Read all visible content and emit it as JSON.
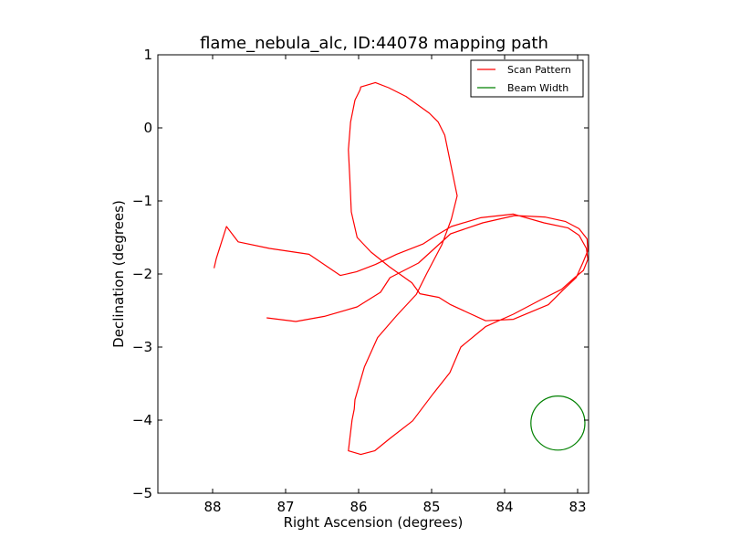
{
  "chart_data": {
    "type": "line",
    "title": "flame_nebula_alc, ID:44078 mapping path",
    "xlabel": "Right Ascension (degrees)",
    "ylabel": "Declination (degrees)",
    "xlim": [
      88.75,
      82.85
    ],
    "ylim": [
      -5,
      1
    ],
    "x_ticks": [
      88,
      87,
      86,
      85,
      84,
      83
    ],
    "y_ticks": [
      1,
      0,
      -1,
      -2,
      -3,
      -4,
      -5
    ],
    "x_tick_labels": [
      "88",
      "87",
      "86",
      "85",
      "84",
      "83"
    ],
    "y_tick_labels": [
      "1",
      "0",
      "−1",
      "−2",
      "−3",
      "−4",
      "−5"
    ],
    "grid": false,
    "legend": {
      "placement": "top-right",
      "entries": [
        {
          "label": "Scan Pattern",
          "color": "#ff0000"
        },
        {
          "label": "Beam Width",
          "color": "#008000"
        }
      ]
    },
    "series": [
      {
        "name": "Scan Pattern",
        "color": "#ff0000",
        "x": [
          87.26,
          86.86,
          86.47,
          86.02,
          85.7,
          85.57,
          85.18,
          84.74,
          84.3,
          83.86,
          83.45,
          83.17,
          82.98,
          82.87,
          82.86,
          82.93,
          83.02,
          83.2,
          83.4,
          83.88,
          84.26,
          84.74,
          84.9,
          85.16,
          85.27,
          85.58,
          85.83,
          86.02,
          86.1,
          86.12,
          86.14,
          86.11,
          86.05,
          85.98,
          85.97,
          85.77,
          85.59,
          85.35,
          85.03,
          84.91,
          84.82,
          84.65,
          84.73,
          84.86,
          85.07,
          85.21,
          85.48,
          85.74,
          85.92,
          86.05,
          86.06,
          86.09,
          86.12,
          86.14,
          85.97,
          85.78,
          85.57,
          85.26,
          84.98,
          84.75,
          84.6,
          84.26,
          83.88,
          83.5,
          83.22,
          83.04,
          82.92,
          82.86,
          82.88,
          82.98,
          83.13,
          83.46,
          83.88,
          84.33,
          84.73,
          84.95,
          85.12,
          85.48,
          85.77,
          86.03,
          86.25,
          86.68,
          87.22,
          87.65,
          87.81,
          87.95,
          87.98
        ],
        "y": [
          -2.6,
          -2.65,
          -2.58,
          -2.45,
          -2.25,
          -2.05,
          -1.85,
          -1.45,
          -1.3,
          -1.2,
          -1.22,
          -1.28,
          -1.38,
          -1.52,
          -1.68,
          -1.85,
          -2.05,
          -2.22,
          -2.42,
          -2.62,
          -2.64,
          -2.42,
          -2.32,
          -2.27,
          -2.12,
          -1.9,
          -1.7,
          -1.5,
          -1.15,
          -0.7,
          -0.3,
          0.08,
          0.38,
          0.52,
          0.56,
          0.62,
          0.55,
          0.43,
          0.2,
          0.08,
          -0.1,
          -0.93,
          -1.25,
          -1.6,
          -2.0,
          -2.28,
          -2.57,
          -2.87,
          -3.27,
          -3.72,
          -3.85,
          -4.0,
          -4.25,
          -4.42,
          -4.47,
          -4.42,
          -4.25,
          -4.01,
          -3.64,
          -3.35,
          -3.0,
          -2.72,
          -2.55,
          -2.35,
          -2.21,
          -2.05,
          -1.95,
          -1.8,
          -1.65,
          -1.47,
          -1.37,
          -1.3,
          -1.18,
          -1.23,
          -1.35,
          -1.48,
          -1.59,
          -1.73,
          -1.87,
          -1.97,
          -2.02,
          -1.73,
          -1.65,
          -1.56,
          -1.35,
          -1.79,
          -1.92
        ]
      }
    ],
    "beam": {
      "name": "Beam Width",
      "color": "#008000",
      "center": [
        83.27,
        -4.04
      ],
      "radius_deg": 0.37
    }
  }
}
